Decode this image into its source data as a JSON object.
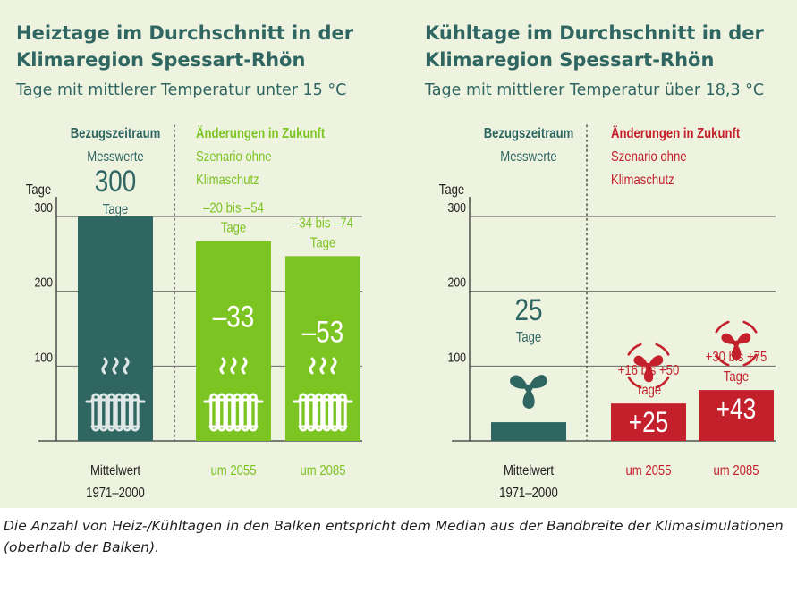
{
  "colors": {
    "background": "#eef3e0",
    "teal": "#2f6662",
    "green": "#7cc422",
    "red": "#c4202b",
    "gridline": "#555555"
  },
  "caption": "Die Anzahl von Heiz-/Kühltagen in den Balken entspricht dem Median aus der Bandbreite der Klimasimulationen (oberhalb der Balken).",
  "chart_data": [
    {
      "type": "bar",
      "title": "Heiztage im Durchschnitt in der Klimaregion Spessart-Rhön",
      "title_lines": [
        "Heiztage im Durchschnitt in der",
        "Klimaregion Spessart-Rhön"
      ],
      "subtitle": "Tage mit mittlerer Temperatur unter 15 °C",
      "ylabel": "Tage",
      "ylim": [
        0,
        300
      ],
      "yticks": [
        100,
        200,
        300
      ],
      "reference_header": "Bezugszeitraum",
      "reference_sub": [
        "Messwerte"
      ],
      "future_header": "Änderungen in Zukunft",
      "future_sub": [
        "Szenario ohne",
        "Klimaschutz"
      ],
      "icon": "radiator-icon",
      "categories": [
        "Mittelwert 1971–2000",
        "um 2055",
        "um 2085"
      ],
      "category_lines": [
        [
          "Mittelwert",
          "1971–2000"
        ],
        [
          "um 2055"
        ],
        [
          "um 2085"
        ]
      ],
      "values": [
        300,
        267,
        247
      ],
      "changes": [
        null,
        -33,
        -53
      ],
      "change_labels": [
        "",
        "–33",
        "–53"
      ],
      "ref_value_label": "300",
      "ref_unit_label": "Tage",
      "ranges": [
        null,
        [
          -20,
          -54
        ],
        [
          -34,
          -74
        ]
      ],
      "range_labels": [
        [],
        [
          "–20 bis –54",
          "Tage"
        ],
        [
          "–34 bis –74",
          "Tage"
        ]
      ]
    },
    {
      "type": "bar",
      "title": "Kühltage im Durchschnitt in der Klimaregion Spessart-Rhön",
      "title_lines": [
        "Kühltage im Durchschnitt in der",
        "Klimaregion Spessart-Rhön"
      ],
      "subtitle": "Tage mit mittlerer Temperatur über 18,3 °C",
      "ylabel": "Tage",
      "ylim": [
        0,
        300
      ],
      "yticks": [
        100,
        200,
        300
      ],
      "reference_header": "Bezugszeitraum",
      "reference_sub": [
        "Messwerte"
      ],
      "future_header": "Änderungen in Zukunft",
      "future_sub": [
        "Szenario ohne",
        "Klimaschutz"
      ],
      "icon": "fan-icon",
      "categories": [
        "Mittelwert 1971–2000",
        "um 2055",
        "um 2085"
      ],
      "category_lines": [
        [
          "Mittelwert",
          "1971–2000"
        ],
        [
          "um 2055"
        ],
        [
          "um 2085"
        ]
      ],
      "values": [
        25,
        50,
        68
      ],
      "changes": [
        null,
        25,
        43
      ],
      "change_labels": [
        "",
        "+25",
        "+43"
      ],
      "ref_value_label": "25",
      "ref_unit_label": "Tage",
      "ranges": [
        null,
        [
          16,
          50
        ],
        [
          30,
          75
        ]
      ],
      "range_labels": [
        [],
        [
          "+16 bis +50",
          "Tage"
        ],
        [
          "+30 bis +75",
          "Tage"
        ]
      ]
    }
  ]
}
